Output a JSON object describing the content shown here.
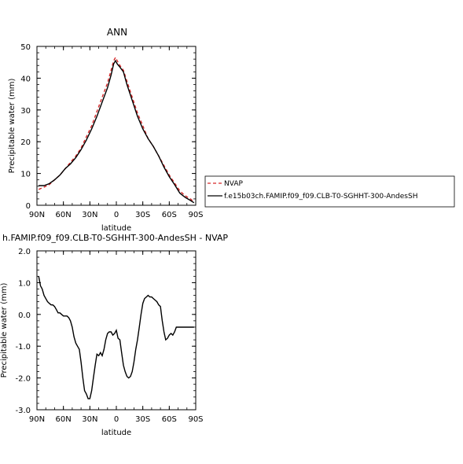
{
  "chart_data": [
    {
      "type": "line",
      "title": "ANN",
      "xlabel": "latitude",
      "ylabel": "Precipitable water (mm)",
      "xlim": [
        90,
        -90
      ],
      "ylim": [
        0,
        50
      ],
      "x_ticks": [
        {
          "v": 90,
          "label": "90N"
        },
        {
          "v": 60,
          "label": "60N"
        },
        {
          "v": 30,
          "label": "30N"
        },
        {
          "v": 0,
          "label": "0"
        },
        {
          "v": -30,
          "label": "30S"
        },
        {
          "v": -60,
          "label": "60S"
        },
        {
          "v": -90,
          "label": "90S"
        }
      ],
      "y_ticks": [
        {
          "v": 0,
          "label": "0"
        },
        {
          "v": 10,
          "label": "10"
        },
        {
          "v": 20,
          "label": "20"
        },
        {
          "v": 30,
          "label": "30"
        },
        {
          "v": 40,
          "label": "40"
        },
        {
          "v": 50,
          "label": "50"
        }
      ],
      "series": [
        {
          "name": "NVAP",
          "color": "#d62728",
          "dash": "4,3",
          "x": [
            88,
            82,
            76,
            70,
            64,
            58,
            52,
            46,
            40,
            34,
            28,
            22,
            16,
            10,
            6,
            3,
            1,
            -1,
            -4,
            -8,
            -12,
            -18,
            -24,
            -30,
            -36,
            -42,
            -48,
            -54,
            -60,
            -66,
            -72,
            -78,
            -84,
            -88
          ],
          "y": [
            5,
            5.7,
            6.5,
            8,
            9.5,
            11.5,
            13.5,
            15.5,
            18,
            21.5,
            25,
            29.5,
            34,
            38.5,
            42.5,
            45.5,
            46.5,
            45.5,
            44,
            42.5,
            39,
            34,
            29,
            25,
            21,
            18.5,
            15.5,
            12.5,
            9.5,
            7,
            4.5,
            3,
            2,
            1
          ]
        },
        {
          "name": "f.e15b03ch.FAMIP.f09_f09.CLB-T0-SGHHT-300-AndesSH",
          "color": "#000000",
          "dash": "",
          "x": [
            88,
            82,
            76,
            70,
            64,
            58,
            52,
            46,
            40,
            34,
            28,
            22,
            16,
            10,
            6,
            3,
            1,
            -1,
            -4,
            -8,
            -12,
            -18,
            -24,
            -30,
            -36,
            -42,
            -48,
            -54,
            -60,
            -66,
            -72,
            -78,
            -84,
            -88
          ],
          "y": [
            6.2,
            6.2,
            6.8,
            8,
            9.5,
            11.5,
            13,
            15,
            17.5,
            20.5,
            24,
            28,
            32.5,
            37,
            41,
            44.5,
            45.5,
            44.5,
            43.5,
            42,
            38,
            33,
            28,
            24,
            21,
            18.5,
            15.5,
            12,
            9,
            6.5,
            3.8,
            2.5,
            1.5,
            0.8
          ]
        }
      ]
    },
    {
      "type": "line",
      "title": "h.FAMIP.f09_f09.CLB-T0-SGHHT-300-AndesSH - NVAP",
      "xlabel": "latitude",
      "ylabel": "Precipitable water (mm)",
      "xlim": [
        90,
        -90
      ],
      "ylim": [
        -3,
        2
      ],
      "x_ticks": [
        {
          "v": 90,
          "label": "90N"
        },
        {
          "v": 60,
          "label": "60N"
        },
        {
          "v": 30,
          "label": "30N"
        },
        {
          "v": 0,
          "label": "0"
        },
        {
          "v": -30,
          "label": "30S"
        },
        {
          "v": -60,
          "label": "60S"
        },
        {
          "v": -90,
          "label": "90S"
        }
      ],
      "y_ticks": [
        {
          "v": 2,
          "label": "2.0"
        },
        {
          "v": 1,
          "label": "1.0"
        },
        {
          "v": 0,
          "label": "0.0"
        },
        {
          "v": -1,
          "label": "-1.0"
        },
        {
          "v": -2,
          "label": "-2.0"
        },
        {
          "v": -3,
          "label": "-3.0"
        }
      ],
      "series": [
        {
          "color": "#000000",
          "x": [
            88,
            86,
            84,
            82,
            80,
            78,
            76,
            74,
            72,
            70,
            68,
            66,
            64,
            62,
            60,
            58,
            56,
            54,
            52,
            50,
            48,
            46,
            44,
            42,
            40,
            38,
            36,
            34,
            32,
            30,
            28,
            26,
            24,
            22,
            20,
            18,
            16,
            14,
            12,
            10,
            8,
            6,
            4,
            2,
            0,
            -2,
            -4,
            -6,
            -8,
            -10,
            -12,
            -14,
            -16,
            -18,
            -20,
            -22,
            -24,
            -26,
            -28,
            -30,
            -32,
            -34,
            -36,
            -38,
            -40,
            -42,
            -44,
            -46,
            -48,
            -50,
            -52,
            -54,
            -56,
            -58,
            -60,
            -62,
            -64,
            -66,
            -68,
            -70,
            -72,
            -74,
            -76,
            -78,
            -80,
            -82,
            -84,
            -86,
            -88
          ],
          "y": [
            1.2,
            0.9,
            0.8,
            0.6,
            0.5,
            0.4,
            0.35,
            0.3,
            0.3,
            0.25,
            0.15,
            0.05,
            0.05,
            0.0,
            -0.05,
            -0.05,
            -0.05,
            -0.1,
            -0.2,
            -0.4,
            -0.7,
            -0.9,
            -1.0,
            -1.1,
            -1.5,
            -2.0,
            -2.4,
            -2.5,
            -2.65,
            -2.65,
            -2.4,
            -2.0,
            -1.6,
            -1.25,
            -1.3,
            -1.2,
            -1.3,
            -1.1,
            -0.8,
            -0.6,
            -0.55,
            -0.55,
            -0.65,
            -0.6,
            -0.5,
            -0.75,
            -0.8,
            -1.2,
            -1.6,
            -1.8,
            -1.95,
            -2.0,
            -1.95,
            -1.8,
            -1.5,
            -1.1,
            -0.8,
            -0.4,
            0.0,
            0.35,
            0.5,
            0.55,
            0.6,
            0.55,
            0.55,
            0.5,
            0.45,
            0.4,
            0.3,
            0.25,
            -0.2,
            -0.55,
            -0.8,
            -0.75,
            -0.65,
            -0.6,
            -0.65,
            -0.55,
            -0.4,
            -0.4,
            -0.4,
            -0.4,
            -0.4,
            -0.4,
            -0.4,
            -0.4,
            -0.4,
            -0.4,
            -0.4
          ]
        }
      ]
    }
  ]
}
